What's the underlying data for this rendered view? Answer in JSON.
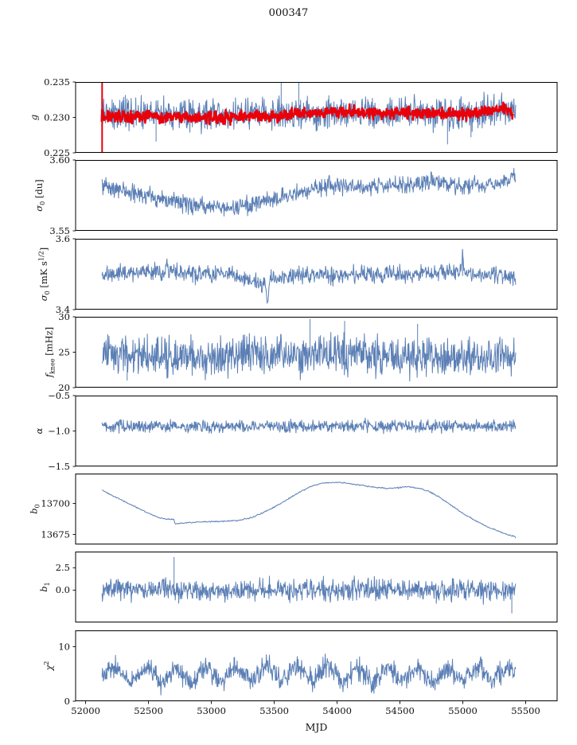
{
  "chart_data": {
    "type": "line",
    "title": "000347",
    "xlabel": "MJD",
    "x_axis": {
      "lim": [
        51920,
        55750
      ],
      "ticks": [
        52000,
        52500,
        53000,
        53500,
        54000,
        54500,
        55000,
        55500
      ],
      "tick_labels": [
        "52000",
        "52500",
        "53000",
        "53500",
        "54000",
        "54500",
        "55000",
        "55500"
      ]
    },
    "colors": {
      "primary_line": "#5b7fb5",
      "overlay_line": "#e8000b",
      "axis": "#000000"
    },
    "panels": [
      {
        "name": "g",
        "ylabel": [
          {
            "t": "g",
            "m": "i"
          }
        ],
        "ylim": [
          0.225,
          0.235
        ],
        "yticks": [
          {
            "v": 0.225,
            "label": "0.225"
          },
          {
            "v": 0.23,
            "label": "0.230"
          },
          {
            "v": 0.235,
            "label": "0.235"
          }
        ],
        "series": [
          {
            "name": "g-raw",
            "color": "#5b7fb5",
            "width": 1.0,
            "samples": 980,
            "noise_sd": 0.0011,
            "trend": {
              "x": [
                52130,
                52400,
                52700,
                53000,
                53300,
                53600,
                53900,
                54200,
                54500,
                54800,
                55000,
                55200,
                55350,
                55420
              ],
              "y": [
                0.2306,
                0.2304,
                0.2303,
                0.2303,
                0.2304,
                0.2306,
                0.2306,
                0.2305,
                0.2306,
                0.2305,
                0.2304,
                0.2308,
                0.2312,
                0.2308
              ]
            },
            "spikes": [
              {
                "x": 52560,
                "y1": 0.2266,
                "y2": 0.2303
              },
              {
                "x": 53555,
                "y1": 0.2302,
                "y2": 0.2362
              },
              {
                "x": 53695,
                "y1": 0.2302,
                "y2": 0.2358
              },
              {
                "x": 54878,
                "y1": 0.2262,
                "y2": 0.2305
              },
              {
                "x": 55065,
                "y1": 0.2272,
                "y2": 0.2305
              }
            ]
          },
          {
            "name": "g-smoothed",
            "color": "#e8000b",
            "width": 2.5,
            "samples": 1050,
            "noise_sd": 0.0004,
            "trend": {
              "x": [
                52127,
                52131,
                52135,
                52300,
                52700,
                53000,
                53300,
                53600,
                53900,
                54100,
                54300,
                54600,
                54900,
                55100,
                55250,
                55330,
                55400
              ],
              "y": [
                0.2302,
                0.2308,
                0.2301,
                0.2302,
                0.23,
                0.23,
                0.2302,
                0.2303,
                0.2307,
                0.2308,
                0.2306,
                0.2306,
                0.2305,
                0.2306,
                0.2311,
                0.2313,
                0.2305
              ]
            },
            "spikes": [
              {
                "x": 52131,
                "y1": 0.2246,
                "y2": 0.2352
              }
            ]
          }
        ]
      },
      {
        "name": "sigma0-du",
        "ylabel": [
          {
            "t": "σ",
            "m": "i"
          },
          {
            "t": "0",
            "m": "sub"
          },
          {
            "t": " [du]",
            "m": "n"
          }
        ],
        "ylim": [
          3.55,
          3.6
        ],
        "yticks": [
          {
            "v": 3.55,
            "label": "3.55"
          },
          {
            "v": 3.6,
            "label": "3.60"
          }
        ],
        "series": [
          {
            "name": "sigma0-du",
            "color": "#5b7fb5",
            "width": 1.0,
            "samples": 950,
            "noise_sd": 0.003,
            "trend": {
              "x": [
                52130,
                52300,
                52500,
                52700,
                52900,
                53050,
                53200,
                53350,
                53500,
                53650,
                53800,
                54000,
                54200,
                54400,
                54600,
                54750,
                54900,
                55100,
                55250,
                55370,
                55400,
                55420
              ],
              "y": [
                3.583,
                3.578,
                3.574,
                3.571,
                3.568,
                3.566,
                3.567,
                3.569,
                3.572,
                3.576,
                3.579,
                3.582,
                3.581,
                3.582,
                3.583,
                3.585,
                3.583,
                3.582,
                3.583,
                3.585,
                3.591,
                3.586
              ]
            },
            "spikes": []
          }
        ]
      },
      {
        "name": "sigma0-mks",
        "ylabel": [
          {
            "t": "σ",
            "m": "i"
          },
          {
            "t": "0",
            "m": "sub"
          },
          {
            "t": " [mK s",
            "m": "n"
          },
          {
            "t": "1/2",
            "m": "sup"
          },
          {
            "t": "]",
            "m": "n"
          }
        ],
        "ylim": [
          3.4,
          3.6
        ],
        "yticks": [
          {
            "v": 3.4,
            "label": "3.4"
          },
          {
            "v": 3.6,
            "label": "3.6"
          }
        ],
        "series": [
          {
            "name": "sigma0-mks",
            "color": "#5b7fb5",
            "width": 1.0,
            "samples": 950,
            "noise_sd": 0.012,
            "trend": {
              "x": [
                52130,
                52400,
                52630,
                52645,
                52660,
                52900,
                53200,
                53430,
                53448,
                53465,
                53700,
                54000,
                54300,
                54600,
                54900,
                54990,
                54998,
                55008,
                55100,
                55300,
                55420
              ],
              "y": [
                3.497,
                3.5,
                3.505,
                3.545,
                3.505,
                3.5,
                3.498,
                3.47,
                3.425,
                3.49,
                3.5,
                3.498,
                3.502,
                3.5,
                3.503,
                3.51,
                3.568,
                3.505,
                3.5,
                3.497,
                3.49
              ]
            },
            "spikes": [
              {
                "x": 54998,
                "y1": 3.495,
                "y2": 3.568
              }
            ]
          }
        ]
      },
      {
        "name": "fknee",
        "ylabel": [
          {
            "t": "f",
            "m": "i"
          },
          {
            "t": "knee",
            "m": "sub"
          },
          {
            "t": " [mHz]",
            "m": "n"
          }
        ],
        "ylim": [
          20,
          30
        ],
        "yticks": [
          {
            "v": 20,
            "label": "20"
          },
          {
            "v": 25,
            "label": "25"
          },
          {
            "v": 30,
            "label": "30"
          }
        ],
        "series": [
          {
            "name": "fknee",
            "color": "#5b7fb5",
            "width": 1.0,
            "samples": 950,
            "noise_sd": 1.35,
            "trend": {
              "x": [
                52130,
                52500,
                53000,
                53500,
                54000,
                54500,
                55000,
                55420
              ],
              "y": [
                25.0,
                24.4,
                24.2,
                24.6,
                24.8,
                24.5,
                24.2,
                24.4
              ]
            },
            "spikes": [
              {
                "x": 52330,
                "y1": 21.0,
                "y2": 24.5
              },
              {
                "x": 53785,
                "y1": 24.2,
                "y2": 29.7
              },
              {
                "x": 54060,
                "y1": 24.0,
                "y2": 29.4
              },
              {
                "x": 54640,
                "y1": 24.0,
                "y2": 29.0
              }
            ]
          }
        ]
      },
      {
        "name": "alpha",
        "ylabel": [
          {
            "t": "α",
            "m": "i"
          }
        ],
        "ylim": [
          -1.5,
          -0.5
        ],
        "yticks": [
          {
            "v": -1.5,
            "label": "−1.5"
          },
          {
            "v": -1.0,
            "label": "−1.0"
          },
          {
            "v": -0.5,
            "label": "−0.5"
          }
        ],
        "series": [
          {
            "name": "alpha",
            "color": "#5b7fb5",
            "width": 1.0,
            "samples": 950,
            "noise_sd": 0.042,
            "trend": {
              "x": [
                52130,
                53000,
                54000,
                55000,
                55420
              ],
              "y": [
                -0.93,
                -0.935,
                -0.93,
                -0.925,
                -0.93
              ]
            },
            "spikes": []
          }
        ]
      },
      {
        "name": "b0",
        "ylabel": [
          {
            "t": "b",
            "m": "i"
          },
          {
            "t": "0",
            "m": "sub"
          }
        ],
        "ylim": [
          13667,
          13724
        ],
        "yticks": [
          {
            "v": 13675,
            "label": "13675"
          },
          {
            "v": 13700,
            "label": "13700"
          }
        ],
        "series": [
          {
            "name": "b0",
            "color": "#5b7fb5",
            "width": 1.0,
            "samples": 700,
            "noise_sd": 0.25,
            "trend": {
              "x": [
                52130,
                52200,
                52300,
                52400,
                52500,
                52600,
                52700,
                52712,
                52730,
                52900,
                53050,
                53200,
                53300,
                53400,
                53500,
                53600,
                53700,
                53800,
                53900,
                54000,
                54100,
                54200,
                54300,
                54400,
                54480,
                54560,
                54640,
                54720,
                54800,
                54900,
                55000,
                55100,
                55200,
                55300,
                55380,
                55410,
                55420
              ],
              "y": [
                13711,
                13707,
                13702,
                13697,
                13692,
                13688,
                13687,
                13683.5,
                13684,
                13685,
                13685.5,
                13686,
                13688,
                13692,
                13697,
                13703,
                13709,
                13714,
                13716.5,
                13717,
                13716,
                13714.5,
                13713,
                13712,
                13712.5,
                13713.5,
                13712.5,
                13710,
                13706,
                13699,
                13692,
                13686,
                13681,
                13677,
                13674,
                13673.5,
                13672
              ]
            },
            "spikes": []
          }
        ]
      },
      {
        "name": "b1",
        "ylabel": [
          {
            "t": "b",
            "m": "i"
          },
          {
            "t": "1",
            "m": "sub"
          }
        ],
        "ylim": [
          -3.6,
          4.3
        ],
        "yticks": [
          {
            "v": 0.0,
            "label": "0.0"
          },
          {
            "v": 2.5,
            "label": "2.5"
          }
        ],
        "series": [
          {
            "name": "b1",
            "color": "#5b7fb5",
            "width": 1.0,
            "samples": 950,
            "noise_sd": 0.6,
            "trend": {
              "x": [
                52130,
                53000,
                54000,
                55000,
                55420
              ],
              "y": [
                0.05,
                0.0,
                0.05,
                0.0,
                0.0
              ]
            },
            "spikes": [
              {
                "x": 52703,
                "y1": -0.4,
                "y2": 3.7
              },
              {
                "x": 55390,
                "y1": -2.6,
                "y2": 0.3
              }
            ]
          }
        ]
      },
      {
        "name": "chi2",
        "ylabel": [
          {
            "t": "χ",
            "m": "i"
          },
          {
            "t": "2",
            "m": "sup"
          }
        ],
        "ylim": [
          0,
          13
        ],
        "yticks": [
          {
            "v": 0,
            "label": "0"
          },
          {
            "v": 10,
            "label": "10"
          }
        ],
        "series": [
          {
            "name": "chi2",
            "color": "#5b7fb5",
            "width": 1.0,
            "samples": 950,
            "noise_sd": 0.95,
            "trend": {
              "x": [
                52130,
                52240,
                52360,
                52480,
                52600,
                52720,
                52840,
                52960,
                53080,
                53200,
                53320,
                53440,
                53560,
                53680,
                53800,
                53920,
                54040,
                54160,
                54280,
                54400,
                54520,
                54640,
                54760,
                54880,
                55000,
                55120,
                55240,
                55360,
                55420
              ],
              "y": [
                4.5,
                6.4,
                3.3,
                6.5,
                3.4,
                6.3,
                3.2,
                6.5,
                3.5,
                6.4,
                3.3,
                6.6,
                3.4,
                6.5,
                3.6,
                6.7,
                3.4,
                6.4,
                3.3,
                6.5,
                3.4,
                6.6,
                3.3,
                6.3,
                3.5,
                6.5,
                3.4,
                6.4,
                5.0
              ]
            },
            "spikes": []
          }
        ]
      }
    ]
  }
}
